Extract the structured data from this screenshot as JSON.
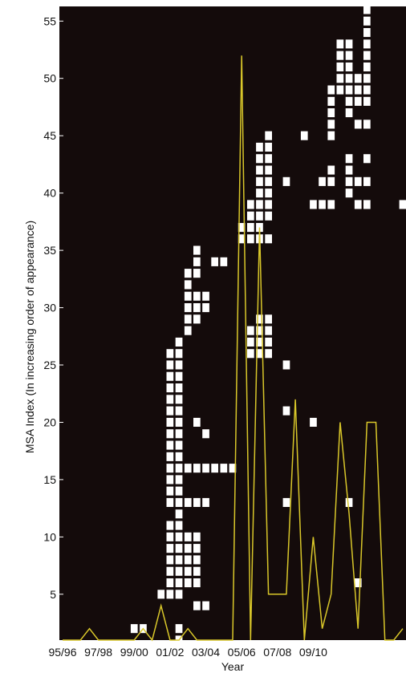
{
  "chart_data": {
    "type": "heatmap",
    "title": "",
    "xlabel": "Year",
    "ylabel": "MSA Index (In increasing order of appearance)",
    "x_tick_labels": [
      "95/96",
      "97/98",
      "99/00",
      "01/02",
      "03/04",
      "05/06",
      "07/08",
      "09/10"
    ],
    "y_ticks": [
      5,
      10,
      15,
      20,
      25,
      30,
      35,
      40,
      45,
      50,
      55
    ],
    "xlim": [
      0,
      38
    ],
    "ylim": [
      1,
      56
    ],
    "background_color": "#140b0b",
    "cell_color": "#ffffff",
    "line_color": "#d9c72a",
    "cells": [
      [
        8,
        2
      ],
      [
        9,
        2
      ],
      [
        11,
        5
      ],
      [
        13,
        1
      ],
      [
        13,
        2
      ],
      [
        12,
        5
      ],
      [
        12,
        6
      ],
      [
        12,
        7
      ],
      [
        12,
        8
      ],
      [
        12,
        9
      ],
      [
        12,
        10
      ],
      [
        12,
        11
      ],
      [
        12,
        13
      ],
      [
        12,
        14
      ],
      [
        12,
        15
      ],
      [
        12,
        16
      ],
      [
        12,
        17
      ],
      [
        12,
        18
      ],
      [
        12,
        19
      ],
      [
        12,
        20
      ],
      [
        12,
        21
      ],
      [
        12,
        22
      ],
      [
        12,
        23
      ],
      [
        12,
        24
      ],
      [
        12,
        25
      ],
      [
        12,
        26
      ],
      [
        13,
        5
      ],
      [
        13,
        6
      ],
      [
        13,
        7
      ],
      [
        13,
        8
      ],
      [
        13,
        9
      ],
      [
        13,
        10
      ],
      [
        13,
        11
      ],
      [
        13,
        12
      ],
      [
        13,
        13
      ],
      [
        13,
        14
      ],
      [
        13,
        15
      ],
      [
        13,
        16
      ],
      [
        13,
        17
      ],
      [
        13,
        18
      ],
      [
        13,
        19
      ],
      [
        13,
        20
      ],
      [
        13,
        21
      ],
      [
        13,
        22
      ],
      [
        13,
        23
      ],
      [
        13,
        24
      ],
      [
        13,
        25
      ],
      [
        13,
        26
      ],
      [
        13,
        27
      ],
      [
        14,
        6
      ],
      [
        14,
        7
      ],
      [
        14,
        8
      ],
      [
        14,
        9
      ],
      [
        14,
        10
      ],
      [
        14,
        13
      ],
      [
        14,
        16
      ],
      [
        14,
        28
      ],
      [
        14,
        29
      ],
      [
        14,
        30
      ],
      [
        14,
        31
      ],
      [
        14,
        32
      ],
      [
        14,
        33
      ],
      [
        15,
        4
      ],
      [
        15,
        6
      ],
      [
        15,
        7
      ],
      [
        15,
        8
      ],
      [
        15,
        9
      ],
      [
        15,
        10
      ],
      [
        15,
        13
      ],
      [
        15,
        16
      ],
      [
        15,
        20
      ],
      [
        15,
        29
      ],
      [
        15,
        30
      ],
      [
        15,
        31
      ],
      [
        15,
        33
      ],
      [
        15,
        34
      ],
      [
        15,
        35
      ],
      [
        16,
        4
      ],
      [
        16,
        13
      ],
      [
        16,
        16
      ],
      [
        16,
        19
      ],
      [
        16,
        30
      ],
      [
        16,
        31
      ],
      [
        17,
        16
      ],
      [
        18,
        16
      ],
      [
        19,
        16
      ],
      [
        17,
        34
      ],
      [
        18,
        34
      ],
      [
        20,
        36
      ],
      [
        20,
        37
      ],
      [
        21,
        36
      ],
      [
        21,
        37
      ],
      [
        21,
        38
      ],
      [
        21,
        39
      ],
      [
        21,
        26
      ],
      [
        21,
        27
      ],
      [
        21,
        28
      ],
      [
        22,
        26
      ],
      [
        22,
        27
      ],
      [
        22,
        28
      ],
      [
        22,
        29
      ],
      [
        22,
        36
      ],
      [
        22,
        37
      ],
      [
        22,
        38
      ],
      [
        22,
        39
      ],
      [
        22,
        40
      ],
      [
        22,
        41
      ],
      [
        22,
        42
      ],
      [
        22,
        43
      ],
      [
        22,
        44
      ],
      [
        23,
        26
      ],
      [
        23,
        27
      ],
      [
        23,
        28
      ],
      [
        23,
        29
      ],
      [
        23,
        36
      ],
      [
        23,
        38
      ],
      [
        23,
        39
      ],
      [
        23,
        40
      ],
      [
        23,
        41
      ],
      [
        23,
        42
      ],
      [
        23,
        43
      ],
      [
        23,
        44
      ],
      [
        23,
        45
      ],
      [
        25,
        13
      ],
      [
        25,
        21
      ],
      [
        25,
        25
      ],
      [
        25,
        41
      ],
      [
        27,
        45
      ],
      [
        28,
        20
      ],
      [
        28,
        39
      ],
      [
        29,
        39
      ],
      [
        29,
        41
      ],
      [
        30,
        39
      ],
      [
        30,
        41
      ],
      [
        30,
        42
      ],
      [
        30,
        45
      ],
      [
        30,
        46
      ],
      [
        30,
        47
      ],
      [
        30,
        48
      ],
      [
        30,
        49
      ],
      [
        31,
        49
      ],
      [
        31,
        50
      ],
      [
        31,
        51
      ],
      [
        31,
        52
      ],
      [
        31,
        53
      ],
      [
        32,
        13
      ],
      [
        32,
        40
      ],
      [
        32,
        41
      ],
      [
        32,
        42
      ],
      [
        32,
        43
      ],
      [
        32,
        47
      ],
      [
        32,
        48
      ],
      [
        32,
        49
      ],
      [
        32,
        50
      ],
      [
        32,
        51
      ],
      [
        32,
        52
      ],
      [
        32,
        53
      ],
      [
        33,
        6
      ],
      [
        33,
        39
      ],
      [
        33,
        41
      ],
      [
        33,
        46
      ],
      [
        33,
        48
      ],
      [
        33,
        49
      ],
      [
        33,
        50
      ],
      [
        34,
        39
      ],
      [
        34,
        41
      ],
      [
        34,
        43
      ],
      [
        34,
        46
      ],
      [
        34,
        48
      ],
      [
        34,
        49
      ],
      [
        34,
        50
      ],
      [
        34,
        51
      ],
      [
        34,
        52
      ],
      [
        34,
        53
      ],
      [
        34,
        54
      ],
      [
        34,
        55
      ],
      [
        34,
        56
      ],
      [
        38,
        39
      ]
    ],
    "line": {
      "x": [
        0,
        1,
        2,
        3,
        4,
        5,
        6,
        7,
        8,
        9,
        10,
        11,
        12,
        13,
        14,
        15,
        16,
        17,
        18,
        19,
        20,
        21,
        22,
        23,
        24,
        25,
        26,
        27,
        28,
        29,
        30,
        31,
        32,
        33,
        34,
        35,
        36,
        37,
        38
      ],
      "y": [
        1,
        1,
        1,
        2,
        1,
        1,
        1,
        1,
        1,
        2,
        1,
        4,
        1,
        1,
        2,
        1,
        1,
        1,
        1,
        1,
        52,
        1,
        37,
        5,
        5,
        5,
        22,
        1,
        10,
        2,
        5,
        20,
        12,
        2,
        20,
        20,
        1,
        1,
        2
      ]
    }
  }
}
